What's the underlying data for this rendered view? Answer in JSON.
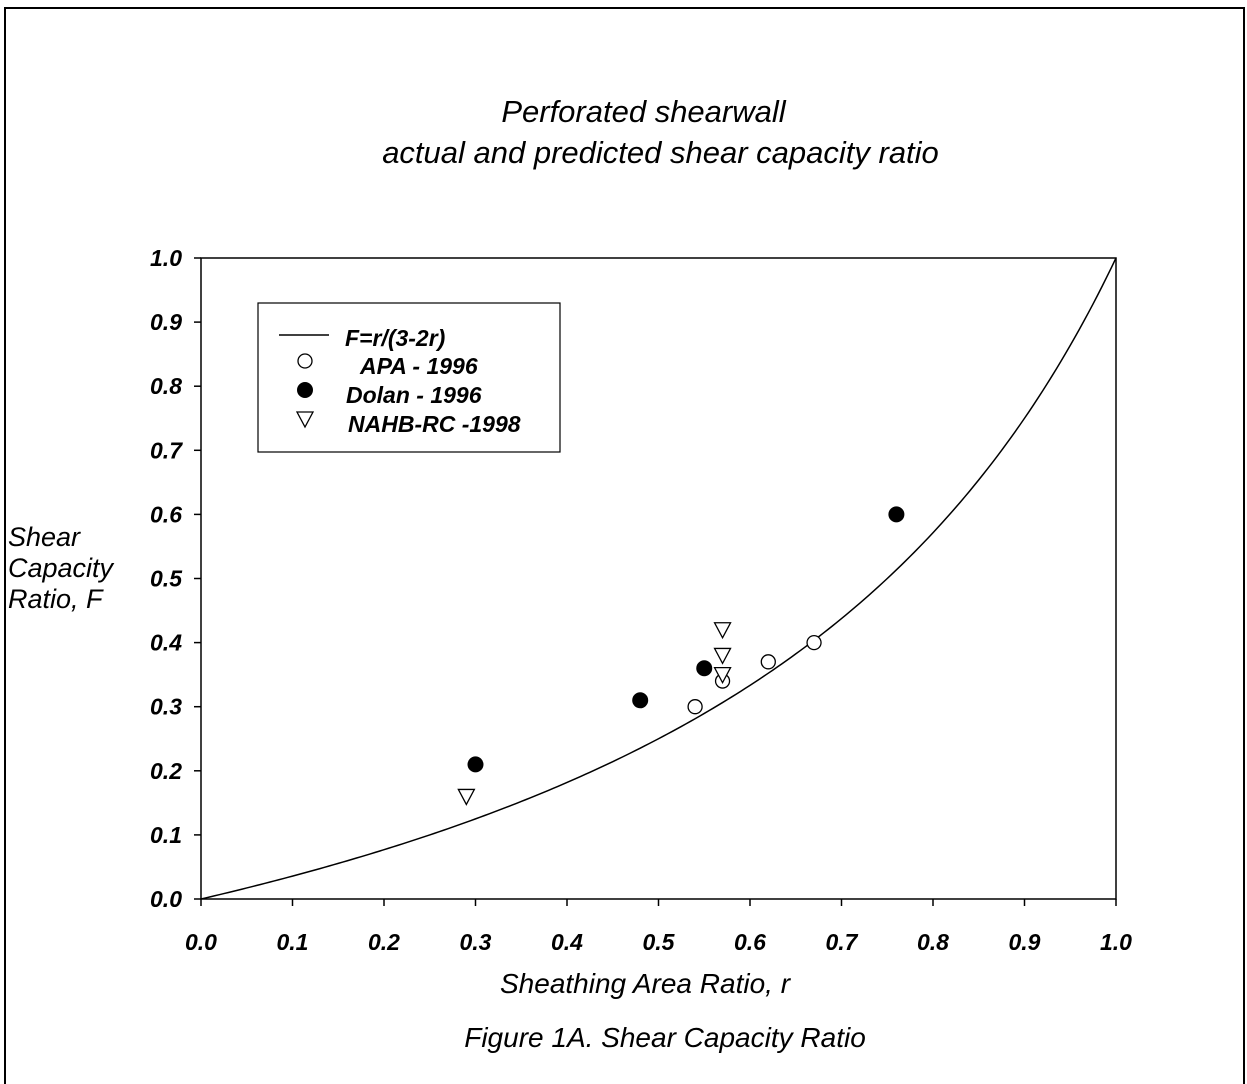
{
  "figure": {
    "title_line1": "Perforated shearwall",
    "title_line2": "actual and predicted shear capacity ratio",
    "caption": "Figure 1A.  Shear Capacity Ratio"
  },
  "chart_data": {
    "type": "scatter",
    "title": "Perforated shearwall actual and predicted shear capacity ratio",
    "xlabel": "Sheathing Area Ratio, r",
    "ylabel": "Shear Capacity Ratio, F",
    "ylabel_lines": [
      "Shear",
      "Capacity",
      "Ratio, F"
    ],
    "xlim": [
      0.0,
      1.0
    ],
    "ylim": [
      0.0,
      1.0
    ],
    "x_ticks": [
      "0.0",
      "0.1",
      "0.2",
      "0.3",
      "0.4",
      "0.5",
      "0.6",
      "0.7",
      "0.8",
      "0.9",
      "1.0"
    ],
    "y_ticks": [
      "0.0",
      "0.1",
      "0.2",
      "0.3",
      "0.4",
      "0.5",
      "0.6",
      "0.7",
      "0.8",
      "0.9",
      "1.0"
    ],
    "grid": false,
    "legend_position": "top-left",
    "series": [
      {
        "name": "F=r/(3-2r)",
        "kind": "line",
        "formula": "r/(3-2r)"
      },
      {
        "name": "APA - 1996",
        "kind": "marker",
        "marker": "open-circle",
        "x": [
          0.54,
          0.57,
          0.62,
          0.67
        ],
        "y": [
          0.3,
          0.34,
          0.37,
          0.4
        ]
      },
      {
        "name": "Dolan - 1996",
        "kind": "marker",
        "marker": "filled-circle",
        "x": [
          0.3,
          0.48,
          0.55,
          0.76
        ],
        "y": [
          0.21,
          0.31,
          0.36,
          0.6
        ]
      },
      {
        "name": "NAHB-RC -1998",
        "kind": "marker",
        "marker": "open-triangle-down",
        "x": [
          0.29,
          0.57,
          0.57,
          0.57
        ],
        "y": [
          0.16,
          0.35,
          0.38,
          0.42
        ]
      }
    ]
  }
}
